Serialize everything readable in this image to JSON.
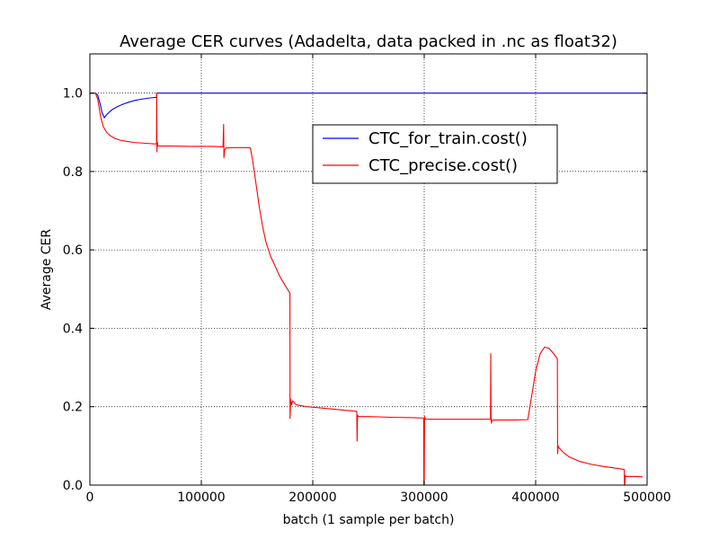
{
  "chart_data": {
    "type": "line",
    "title": "Average CER curves (Adadelta, data packed in .nc as float32)",
    "xlabel": "batch (1 sample per batch)",
    "ylabel": "Average CER",
    "xlim": [
      0,
      500000
    ],
    "ylim": [
      0,
      1.1
    ],
    "xticks": [
      0,
      100000,
      200000,
      300000,
      400000,
      500000
    ],
    "xtick_labels": [
      "0",
      "100000",
      "200000",
      "300000",
      "400000",
      "500000"
    ],
    "yticks": [
      0.0,
      0.2,
      0.4,
      0.6,
      0.8,
      1.0
    ],
    "ytick_labels": [
      "0.0",
      "0.2",
      "0.4",
      "0.6",
      "0.8",
      "1.0"
    ],
    "grid": true,
    "legend_position": "upper-center",
    "series": [
      {
        "name": "CTC_for_train.cost()",
        "color": "#0000ff",
        "points": [
          [
            0,
            1.0
          ],
          [
            5000,
            1.0
          ],
          [
            7000,
            0.995
          ],
          [
            9000,
            0.975
          ],
          [
            11000,
            0.95
          ],
          [
            13000,
            0.937
          ],
          [
            15000,
            0.945
          ],
          [
            20000,
            0.958
          ],
          [
            25000,
            0.966
          ],
          [
            30000,
            0.972
          ],
          [
            35000,
            0.977
          ],
          [
            40000,
            0.981
          ],
          [
            45000,
            0.984
          ],
          [
            50000,
            0.986
          ],
          [
            55000,
            0.988
          ],
          [
            59800,
            0.989
          ],
          [
            60000,
            1.0
          ],
          [
            100000,
            1.0
          ],
          [
            200000,
            1.0
          ],
          [
            300000,
            1.0
          ],
          [
            400000,
            1.0
          ],
          [
            500000,
            1.0
          ]
        ]
      },
      {
        "name": "CTC_precise.cost()",
        "color": "#ff0000",
        "points": [
          [
            0,
            1.0
          ],
          [
            5000,
            1.0
          ],
          [
            7000,
            0.985
          ],
          [
            8500,
            0.96
          ],
          [
            10000,
            0.935
          ],
          [
            12000,
            0.915
          ],
          [
            15000,
            0.9
          ],
          [
            18000,
            0.892
          ],
          [
            22000,
            0.885
          ],
          [
            27000,
            0.88
          ],
          [
            33000,
            0.877
          ],
          [
            40000,
            0.874
          ],
          [
            50000,
            0.872
          ],
          [
            59800,
            0.87
          ],
          [
            60000,
            1.0
          ],
          [
            60200,
            0.85
          ],
          [
            60500,
            0.875
          ],
          [
            61000,
            0.865
          ],
          [
            70000,
            0.865
          ],
          [
            90000,
            0.864
          ],
          [
            110000,
            0.864
          ],
          [
            119500,
            0.863
          ],
          [
            120000,
            0.92
          ],
          [
            120300,
            0.835
          ],
          [
            121000,
            0.855
          ],
          [
            122000,
            0.86
          ],
          [
            130000,
            0.861
          ],
          [
            140000,
            0.861
          ],
          [
            144000,
            0.86
          ],
          [
            146000,
            0.83
          ],
          [
            149000,
            0.77
          ],
          [
            152000,
            0.71
          ],
          [
            155000,
            0.66
          ],
          [
            158000,
            0.62
          ],
          [
            162000,
            0.585
          ],
          [
            166000,
            0.56
          ],
          [
            170000,
            0.535
          ],
          [
            175000,
            0.51
          ],
          [
            179500,
            0.49
          ],
          [
            179600,
            0.17
          ],
          [
            180200,
            0.22
          ],
          [
            181000,
            0.205
          ],
          [
            182000,
            0.215
          ],
          [
            185000,
            0.205
          ],
          [
            195000,
            0.2
          ],
          [
            210000,
            0.196
          ],
          [
            225000,
            0.192
          ],
          [
            239500,
            0.188
          ],
          [
            239800,
            0.112
          ],
          [
            240200,
            0.178
          ],
          [
            241000,
            0.175
          ],
          [
            250000,
            0.175
          ],
          [
            270000,
            0.173
          ],
          [
            290000,
            0.172
          ],
          [
            299500,
            0.171
          ],
          [
            299700,
            0.0
          ],
          [
            300000,
            0.0
          ],
          [
            300300,
            0.175
          ],
          [
            301000,
            0.168
          ],
          [
            320000,
            0.168
          ],
          [
            340000,
            0.168
          ],
          [
            359500,
            0.168
          ],
          [
            359700,
            0.335
          ],
          [
            360000,
            0.17
          ],
          [
            360300,
            0.158
          ],
          [
            361000,
            0.166
          ],
          [
            380000,
            0.166
          ],
          [
            393000,
            0.167
          ],
          [
            396000,
            0.22
          ],
          [
            400000,
            0.29
          ],
          [
            404000,
            0.335
          ],
          [
            408000,
            0.352
          ],
          [
            412000,
            0.349
          ],
          [
            416000,
            0.336
          ],
          [
            419500,
            0.322
          ],
          [
            419700,
            0.08
          ],
          [
            420200,
            0.1
          ],
          [
            421000,
            0.095
          ],
          [
            425000,
            0.083
          ],
          [
            430000,
            0.072
          ],
          [
            440000,
            0.06
          ],
          [
            450000,
            0.053
          ],
          [
            460000,
            0.048
          ],
          [
            470000,
            0.044
          ],
          [
            479500,
            0.04
          ],
          [
            479700,
            0.0
          ],
          [
            480000,
            0.0
          ],
          [
            480300,
            0.025
          ],
          [
            481000,
            0.022
          ],
          [
            490000,
            0.022
          ],
          [
            496000,
            0.021
          ]
        ]
      }
    ]
  }
}
